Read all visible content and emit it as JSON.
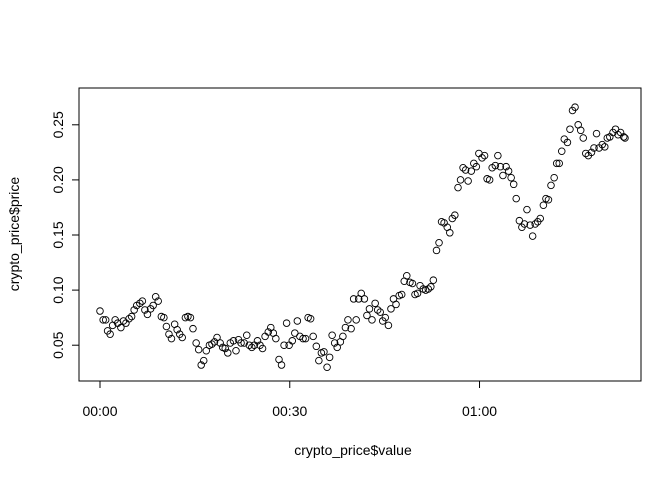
{
  "chart_data": {
    "type": "scatter",
    "title": "",
    "xlabel": "crypto_price$value",
    "ylabel": "crypto_price$price",
    "x_unit": "minutes",
    "xlim": [
      0,
      83
    ],
    "ylim": [
      0.0275,
      0.2725
    ],
    "x_ticks": [
      {
        "value": 0,
        "label": "00:00"
      },
      {
        "value": 30,
        "label": "00:30"
      },
      {
        "value": 60,
        "label": "01:00"
      }
    ],
    "y_ticks": [
      {
        "value": 0.05,
        "label": "0.05"
      },
      {
        "value": 0.1,
        "label": "0.10"
      },
      {
        "value": 0.15,
        "label": "0.15"
      },
      {
        "value": 0.2,
        "label": "0.20"
      },
      {
        "value": 0.25,
        "label": "0.25"
      }
    ],
    "grid": false,
    "series": [
      {
        "points": [
          [
            0.0,
            0.081
          ],
          [
            0.5,
            0.073
          ],
          [
            0.9,
            0.073
          ],
          [
            1.2,
            0.063
          ],
          [
            1.6,
            0.06
          ],
          [
            2.0,
            0.068
          ],
          [
            2.4,
            0.073
          ],
          [
            2.8,
            0.07
          ],
          [
            3.3,
            0.066
          ],
          [
            3.7,
            0.072
          ],
          [
            4.1,
            0.07
          ],
          [
            4.6,
            0.074
          ],
          [
            5.0,
            0.076
          ],
          [
            5.4,
            0.082
          ],
          [
            5.8,
            0.086
          ],
          [
            6.3,
            0.088
          ],
          [
            6.7,
            0.09
          ],
          [
            7.1,
            0.082
          ],
          [
            7.5,
            0.078
          ],
          [
            8.0,
            0.083
          ],
          [
            8.4,
            0.086
          ],
          [
            8.8,
            0.094
          ],
          [
            9.2,
            0.09
          ],
          [
            9.7,
            0.076
          ],
          [
            10.1,
            0.075
          ],
          [
            10.5,
            0.067
          ],
          [
            10.9,
            0.06
          ],
          [
            11.3,
            0.056
          ],
          [
            11.8,
            0.069
          ],
          [
            12.2,
            0.064
          ],
          [
            12.6,
            0.06
          ],
          [
            13.0,
            0.057
          ],
          [
            13.5,
            0.075
          ],
          [
            13.9,
            0.076
          ],
          [
            14.3,
            0.075
          ],
          [
            14.7,
            0.065
          ],
          [
            15.2,
            0.052
          ],
          [
            15.6,
            0.046
          ],
          [
            16.0,
            0.032
          ],
          [
            16.4,
            0.036
          ],
          [
            16.8,
            0.045
          ],
          [
            17.3,
            0.05
          ],
          [
            17.7,
            0.051
          ],
          [
            18.1,
            0.053
          ],
          [
            18.5,
            0.057
          ],
          [
            19.0,
            0.052
          ],
          [
            19.4,
            0.048
          ],
          [
            19.8,
            0.047
          ],
          [
            20.2,
            0.043
          ],
          [
            20.6,
            0.052
          ],
          [
            21.1,
            0.054
          ],
          [
            21.5,
            0.045
          ],
          [
            21.9,
            0.055
          ],
          [
            22.3,
            0.052
          ],
          [
            22.8,
            0.052
          ],
          [
            23.2,
            0.059
          ],
          [
            23.6,
            0.05
          ],
          [
            24.0,
            0.048
          ],
          [
            24.4,
            0.05
          ],
          [
            24.9,
            0.054
          ],
          [
            25.3,
            0.05
          ],
          [
            25.7,
            0.047
          ],
          [
            26.1,
            0.058
          ],
          [
            26.6,
            0.062
          ],
          [
            27.0,
            0.066
          ],
          [
            27.4,
            0.061
          ],
          [
            27.8,
            0.056
          ],
          [
            28.3,
            0.037
          ],
          [
            28.7,
            0.032
          ],
          [
            29.1,
            0.05
          ],
          [
            29.5,
            0.07
          ],
          [
            29.9,
            0.05
          ],
          [
            30.4,
            0.054
          ],
          [
            30.8,
            0.061
          ],
          [
            31.2,
            0.072
          ],
          [
            31.6,
            0.058
          ],
          [
            32.1,
            0.056
          ],
          [
            32.5,
            0.056
          ],
          [
            32.9,
            0.075
          ],
          [
            33.3,
            0.074
          ],
          [
            33.7,
            0.058
          ],
          [
            34.2,
            0.049
          ],
          [
            34.6,
            0.036
          ],
          [
            35.0,
            0.043
          ],
          [
            35.4,
            0.044
          ],
          [
            35.9,
            0.03
          ],
          [
            36.3,
            0.039
          ],
          [
            36.7,
            0.059
          ],
          [
            37.1,
            0.052
          ],
          [
            37.5,
            0.048
          ],
          [
            38.0,
            0.053
          ],
          [
            38.4,
            0.058
          ],
          [
            38.8,
            0.066
          ],
          [
            39.2,
            0.073
          ],
          [
            39.7,
            0.065
          ],
          [
            40.1,
            0.092
          ],
          [
            40.5,
            0.073
          ],
          [
            40.9,
            0.092
          ],
          [
            41.3,
            0.097
          ],
          [
            41.8,
            0.092
          ],
          [
            42.2,
            0.077
          ],
          [
            42.6,
            0.083
          ],
          [
            43.0,
            0.073
          ],
          [
            43.5,
            0.088
          ],
          [
            43.9,
            0.082
          ],
          [
            44.3,
            0.08
          ],
          [
            44.7,
            0.072
          ],
          [
            45.1,
            0.075
          ],
          [
            45.6,
            0.068
          ],
          [
            46.0,
            0.083
          ],
          [
            46.4,
            0.092
          ],
          [
            46.8,
            0.087
          ],
          [
            47.3,
            0.095
          ],
          [
            47.7,
            0.096
          ],
          [
            48.1,
            0.108
          ],
          [
            48.5,
            0.113
          ],
          [
            49.0,
            0.107
          ],
          [
            49.4,
            0.106
          ],
          [
            49.8,
            0.096
          ],
          [
            50.2,
            0.097
          ],
          [
            50.6,
            0.104
          ],
          [
            51.1,
            0.101
          ],
          [
            51.5,
            0.1
          ],
          [
            51.9,
            0.101
          ],
          [
            52.3,
            0.103
          ],
          [
            52.7,
            0.109
          ],
          [
            53.2,
            0.136
          ],
          [
            53.6,
            0.143
          ],
          [
            54.0,
            0.162
          ],
          [
            54.4,
            0.161
          ],
          [
            54.9,
            0.157
          ],
          [
            55.3,
            0.152
          ],
          [
            55.7,
            0.165
          ],
          [
            56.1,
            0.168
          ],
          [
            56.6,
            0.193
          ],
          [
            57.0,
            0.2
          ],
          [
            57.4,
            0.211
          ],
          [
            57.8,
            0.209
          ],
          [
            58.2,
            0.199
          ],
          [
            58.7,
            0.208
          ],
          [
            59.1,
            0.215
          ],
          [
            59.5,
            0.212
          ],
          [
            59.9,
            0.224
          ],
          [
            60.4,
            0.22
          ],
          [
            60.8,
            0.222
          ],
          [
            61.2,
            0.201
          ],
          [
            61.6,
            0.2
          ],
          [
            62.0,
            0.211
          ],
          [
            62.5,
            0.213
          ],
          [
            62.9,
            0.222
          ],
          [
            63.3,
            0.212
          ],
          [
            63.7,
            0.204
          ],
          [
            64.2,
            0.212
          ],
          [
            64.6,
            0.208
          ],
          [
            65.0,
            0.202
          ],
          [
            65.4,
            0.196
          ],
          [
            65.8,
            0.183
          ],
          [
            66.3,
            0.163
          ],
          [
            66.7,
            0.157
          ],
          [
            67.1,
            0.16
          ],
          [
            67.5,
            0.173
          ],
          [
            68.0,
            0.159
          ],
          [
            68.4,
            0.149
          ],
          [
            68.8,
            0.16
          ],
          [
            69.2,
            0.162
          ],
          [
            69.6,
            0.165
          ],
          [
            70.1,
            0.177
          ],
          [
            70.5,
            0.183
          ],
          [
            70.9,
            0.182
          ],
          [
            71.3,
            0.195
          ],
          [
            71.8,
            0.202
          ],
          [
            72.2,
            0.215
          ],
          [
            72.6,
            0.215
          ],
          [
            73.0,
            0.226
          ],
          [
            73.4,
            0.237
          ],
          [
            73.9,
            0.234
          ],
          [
            74.3,
            0.246
          ],
          [
            74.7,
            0.263
          ],
          [
            75.1,
            0.266
          ],
          [
            75.6,
            0.25
          ],
          [
            76.0,
            0.245
          ],
          [
            76.4,
            0.238
          ],
          [
            76.8,
            0.224
          ],
          [
            77.2,
            0.222
          ],
          [
            77.7,
            0.225
          ],
          [
            78.1,
            0.229
          ],
          [
            78.5,
            0.242
          ],
          [
            78.9,
            0.229
          ],
          [
            79.4,
            0.232
          ],
          [
            79.8,
            0.23
          ],
          [
            80.2,
            0.238
          ],
          [
            80.6,
            0.239
          ],
          [
            81.1,
            0.243
          ],
          [
            81.5,
            0.246
          ],
          [
            81.9,
            0.241
          ],
          [
            82.3,
            0.243
          ],
          [
            82.8,
            0.239
          ],
          [
            83.0,
            0.238
          ]
        ]
      }
    ]
  }
}
